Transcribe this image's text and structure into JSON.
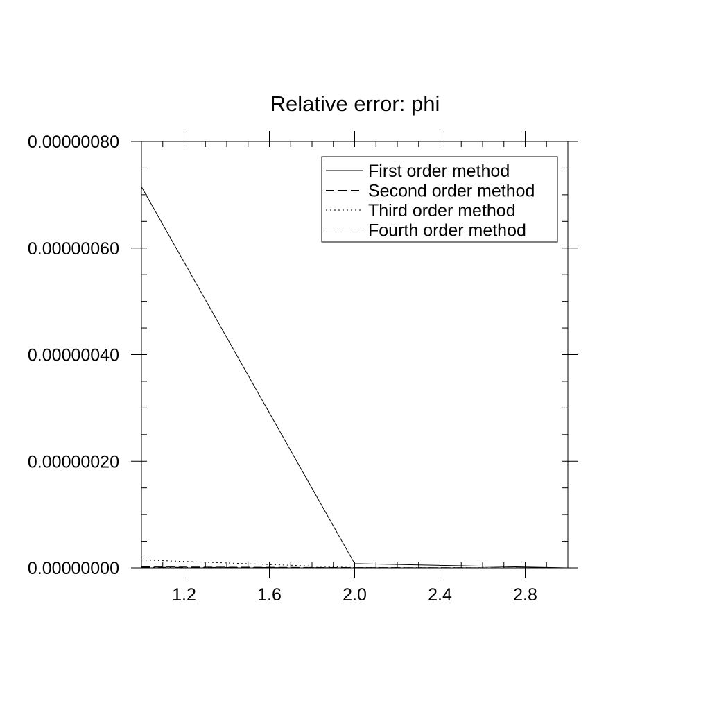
{
  "chart_data": {
    "type": "line",
    "title": "Relative error: phi",
    "xlabel": "",
    "ylabel": "",
    "xlim": [
      1.0,
      3.0
    ],
    "ylim": [
      0.0,
      8e-07
    ],
    "x_ticks": [
      1.2,
      1.6,
      2.0,
      2.4,
      2.8
    ],
    "x_tick_labels": [
      "1.2",
      "1.6",
      "2.0",
      "2.4",
      "2.8"
    ],
    "x_minor_step": 0.1,
    "y_ticks": [
      0.0,
      2e-07,
      4e-07,
      6e-07,
      8e-07
    ],
    "y_tick_labels": [
      "0.00000000",
      "0.00000020",
      "0.00000040",
      "0.00000060",
      "0.00000080"
    ],
    "y_minor_step": 5e-08,
    "grid": false,
    "legend_position": "top-right",
    "x": [
      1,
      2,
      3
    ],
    "series": [
      {
        "name": "First order method",
        "values": [
          7.15e-07,
          8e-09,
          0.0
        ],
        "color": "#000000",
        "dash": "solid"
      },
      {
        "name": "Second order method",
        "values": [
          2e-09,
          5e-10,
          0.0
        ],
        "color": "#000000",
        "dash": "dashed"
      },
      {
        "name": "Third order method",
        "values": [
          1.5e-08,
          5e-10,
          0.0
        ],
        "color": "#000000",
        "dash": "dotted"
      },
      {
        "name": "Fourth order method",
        "values": [
          1e-09,
          3e-10,
          0.0
        ],
        "color": "#000000",
        "dash": "dashdot"
      }
    ]
  }
}
